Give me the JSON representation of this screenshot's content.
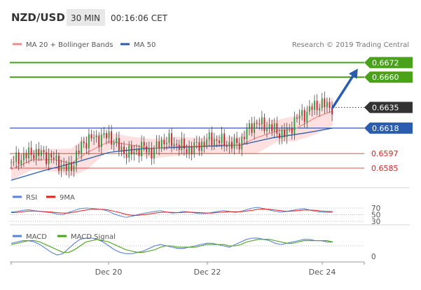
{
  "header": {
    "pair": "NZD/USD",
    "timeframe": "30 MIN",
    "time": "00:16:06 CET"
  },
  "copyright": "Research © 2019 Trading Central",
  "colors": {
    "green": "#4aa11a",
    "blue": "#2a5db0",
    "red": "#e0201f",
    "ma20": "#f08b8b",
    "band_fill": "#fdd5d5",
    "current": "#333333",
    "rsi": "#5b82d8",
    "nine_ma": "#e0201f",
    "macd": "#5b82d8",
    "macd_signal": "#4aa11a"
  },
  "chart_data": [
    {
      "type": "candlestick",
      "title": "NZD/USD",
      "legend": [
        {
          "name": "MA 20 + Bollinger Bands",
          "color": "#f08b8b"
        },
        {
          "name": "MA 50",
          "color": "#2a5db0"
        }
      ],
      "x_labels": [
        "Dec 20",
        "Dec 22",
        "Dec 24"
      ],
      "ylim": [
        0.657,
        0.6682
      ],
      "levels": [
        {
          "value": 0.6672,
          "label": "0.6672",
          "kind": "target",
          "color": "#4aa11a"
        },
        {
          "value": 0.666,
          "label": "0.6660",
          "kind": "target",
          "color": "#4aa11a"
        },
        {
          "value": 0.6635,
          "label": "0.6635",
          "kind": "current",
          "color": "#333333"
        },
        {
          "value": 0.6618,
          "label": "0.6618",
          "kind": "pivot",
          "color": "#2a5db0"
        },
        {
          "value": 0.6597,
          "label": "0.6597",
          "kind": "support",
          "color": "#e0201f"
        },
        {
          "value": 0.6585,
          "label": "0.6585",
          "kind": "support",
          "color": "#e0201f"
        }
      ],
      "price_path": [
        [
          0,
          0.659
        ],
        [
          10,
          0.6594
        ],
        [
          20,
          0.6598
        ],
        [
          30,
          0.6596
        ],
        [
          40,
          0.6592
        ],
        [
          45,
          0.6588
        ],
        [
          50,
          0.6584
        ],
        [
          55,
          0.6586
        ],
        [
          60,
          0.6595
        ],
        [
          65,
          0.6605
        ],
        [
          70,
          0.6608
        ],
        [
          75,
          0.661
        ],
        [
          80,
          0.6609
        ],
        [
          85,
          0.6611
        ],
        [
          90,
          0.6612
        ],
        [
          95,
          0.6606
        ],
        [
          100,
          0.6601
        ],
        [
          105,
          0.6598
        ],
        [
          110,
          0.6597
        ],
        [
          115,
          0.66
        ],
        [
          120,
          0.6602
        ],
        [
          125,
          0.66
        ],
        [
          130,
          0.6598
        ],
        [
          135,
          0.6604
        ],
        [
          140,
          0.6608
        ],
        [
          145,
          0.6607
        ],
        [
          150,
          0.6605
        ],
        [
          155,
          0.6604
        ],
        [
          160,
          0.66
        ],
        [
          165,
          0.6601
        ],
        [
          170,
          0.6603
        ],
        [
          175,
          0.6605
        ],
        [
          180,
          0.6608
        ],
        [
          185,
          0.6609
        ],
        [
          190,
          0.6608
        ],
        [
          195,
          0.6606
        ],
        [
          200,
          0.6605
        ],
        [
          205,
          0.6604
        ],
        [
          210,
          0.6606
        ],
        [
          215,
          0.6613
        ],
        [
          220,
          0.662
        ],
        [
          225,
          0.6622
        ],
        [
          230,
          0.6621
        ],
        [
          235,
          0.662
        ],
        [
          240,
          0.6617
        ],
        [
          245,
          0.6615
        ],
        [
          250,
          0.6612
        ],
        [
          255,
          0.6616
        ],
        [
          260,
          0.6624
        ],
        [
          265,
          0.6628
        ],
        [
          270,
          0.663
        ],
        [
          275,
          0.6634
        ],
        [
          280,
          0.6637
        ],
        [
          285,
          0.6638
        ],
        [
          290,
          0.6636
        ],
        [
          295,
          0.6635
        ]
      ],
      "ma20_path": [
        [
          0,
          0.6584
        ],
        [
          20,
          0.6592
        ],
        [
          40,
          0.6592
        ],
        [
          55,
          0.6589
        ],
        [
          70,
          0.6598
        ],
        [
          90,
          0.6607
        ],
        [
          110,
          0.6604
        ],
        [
          130,
          0.6601
        ],
        [
          150,
          0.6603
        ],
        [
          170,
          0.6603
        ],
        [
          190,
          0.6604
        ],
        [
          210,
          0.6604
        ],
        [
          225,
          0.661
        ],
        [
          245,
          0.6616
        ],
        [
          260,
          0.6617
        ],
        [
          280,
          0.6627
        ],
        [
          295,
          0.6632
        ]
      ],
      "band_upper": [
        [
          0,
          0.6594
        ],
        [
          20,
          0.66
        ],
        [
          40,
          0.6601
        ],
        [
          55,
          0.6601
        ],
        [
          70,
          0.6612
        ],
        [
          90,
          0.6614
        ],
        [
          110,
          0.6611
        ],
        [
          130,
          0.6609
        ],
        [
          150,
          0.6611
        ],
        [
          170,
          0.661
        ],
        [
          190,
          0.6611
        ],
        [
          210,
          0.6611
        ],
        [
          225,
          0.6625
        ],
        [
          245,
          0.6625
        ],
        [
          260,
          0.6628
        ],
        [
          280,
          0.664
        ],
        [
          295,
          0.6643
        ]
      ],
      "band_lower": [
        [
          0,
          0.6575
        ],
        [
          20,
          0.6584
        ],
        [
          40,
          0.6582
        ],
        [
          55,
          0.6578
        ],
        [
          70,
          0.6584
        ],
        [
          90,
          0.66
        ],
        [
          110,
          0.6597
        ],
        [
          130,
          0.6593
        ],
        [
          150,
          0.6595
        ],
        [
          170,
          0.6596
        ],
        [
          190,
          0.6597
        ],
        [
          210,
          0.6597
        ],
        [
          225,
          0.6597
        ],
        [
          245,
          0.6607
        ],
        [
          260,
          0.6607
        ],
        [
          280,
          0.6613
        ],
        [
          295,
          0.662
        ]
      ],
      "ma50_path": [
        [
          0,
          0.6575
        ],
        [
          30,
          0.6583
        ],
        [
          60,
          0.659
        ],
        [
          90,
          0.6598
        ],
        [
          120,
          0.6601
        ],
        [
          150,
          0.6602
        ],
        [
          180,
          0.6603
        ],
        [
          210,
          0.6604
        ],
        [
          240,
          0.661
        ],
        [
          270,
          0.6614
        ],
        [
          295,
          0.6618
        ]
      ],
      "forecast_arrow": {
        "from": [
          295,
          0.6635
        ],
        "to": [
          318,
          0.6667
        ]
      }
    },
    {
      "type": "line",
      "title": "RSI",
      "legend": [
        {
          "name": "RSI",
          "color": "#5b82d8"
        },
        {
          "name": "9MA",
          "color": "#e0201f"
        }
      ],
      "reference_lines": [
        {
          "value": 70,
          "label": "70"
        },
        {
          "value": 50,
          "label": "50"
        },
        {
          "value": 30,
          "label": "30"
        }
      ],
      "ylim": [
        0,
        100
      ],
      "series": [
        {
          "name": "RSI",
          "values": [
            58,
            60,
            63,
            65,
            62,
            60,
            58,
            56,
            52,
            50,
            57,
            63,
            68,
            70,
            69,
            67,
            65,
            60,
            52,
            46,
            42,
            45,
            50,
            54,
            57,
            60,
            62,
            58,
            55,
            56,
            60,
            58,
            55,
            53,
            54,
            57,
            60,
            62,
            60,
            57,
            60,
            65,
            70,
            72,
            68,
            64,
            60,
            58,
            60,
            63,
            66,
            68,
            64,
            60,
            58,
            57,
            58
          ]
        },
        {
          "name": "9MA",
          "values": [
            56,
            57,
            59,
            61,
            61,
            60,
            59,
            58,
            56,
            55,
            55,
            58,
            61,
            64,
            66,
            66,
            66,
            64,
            60,
            56,
            51,
            48,
            48,
            50,
            52,
            55,
            57,
            58,
            57,
            56,
            57,
            58,
            57,
            56,
            55,
            55,
            57,
            58,
            59,
            59,
            59,
            61,
            63,
            66,
            67,
            66,
            64,
            62,
            60,
            61,
            62,
            64,
            64,
            63,
            61,
            60,
            59
          ]
        }
      ]
    },
    {
      "type": "line",
      "title": "MACD",
      "legend": [
        {
          "name": "MACD",
          "color": "#5b82d8"
        },
        {
          "name": "MACD Signal",
          "color": "#4aa11a"
        }
      ],
      "reference_lines": [
        {
          "value": 0,
          "label": "0"
        }
      ],
      "ylim": [
        -0.0011,
        0.0011
      ],
      "series": [
        {
          "name": "MACD",
          "values": [
            0.0002,
            0.0003,
            0.0004,
            0.0004,
            0.0003,
            0.0001,
            -0.0002,
            -0.0005,
            -0.0007,
            -0.0006,
            -0.0002,
            0.0002,
            0.0005,
            0.0006,
            0.0006,
            0.0005,
            0.0003,
            0.0,
            -0.0003,
            -0.0005,
            -0.0006,
            -0.0006,
            -0.0005,
            -0.0004,
            -0.0002,
            0.0,
            0.0001,
            0.0,
            -0.0001,
            -0.0002,
            -0.0002,
            -0.0001,
            0.0,
            0.0001,
            0.0002,
            0.0002,
            0.0001,
            0.0,
            -0.0001,
            0.0001,
            0.0003,
            0.0005,
            0.0006,
            0.0006,
            0.0005,
            0.0004,
            0.0002,
            0.0001,
            0.0002,
            0.0003,
            0.0004,
            0.0005,
            0.0005,
            0.0004,
            0.0004,
            0.0003,
            0.0003
          ]
        },
        {
          "name": "MACD Signal",
          "values": [
            0.0001,
            0.0002,
            0.0003,
            0.0004,
            0.0004,
            0.0003,
            0.0001,
            -0.0001,
            -0.0003,
            -0.0005,
            -0.0005,
            -0.0003,
            0.0,
            0.0003,
            0.0004,
            0.0005,
            0.0004,
            0.0003,
            0.0001,
            -0.0001,
            -0.0003,
            -0.0004,
            -0.0005,
            -0.0005,
            -0.0004,
            -0.0003,
            -0.0001,
            0.0,
            0.0,
            -0.0001,
            -0.0001,
            -0.0001,
            -0.0001,
            0.0,
            0.0001,
            0.0001,
            0.0001,
            0.0001,
            0.0,
            0.0,
            0.0001,
            0.0003,
            0.0004,
            0.0005,
            0.0005,
            0.0005,
            0.0004,
            0.0003,
            0.0002,
            0.0002,
            0.0003,
            0.0004,
            0.0004,
            0.0004,
            0.0004,
            0.0004,
            0.0003
          ]
        }
      ]
    }
  ]
}
